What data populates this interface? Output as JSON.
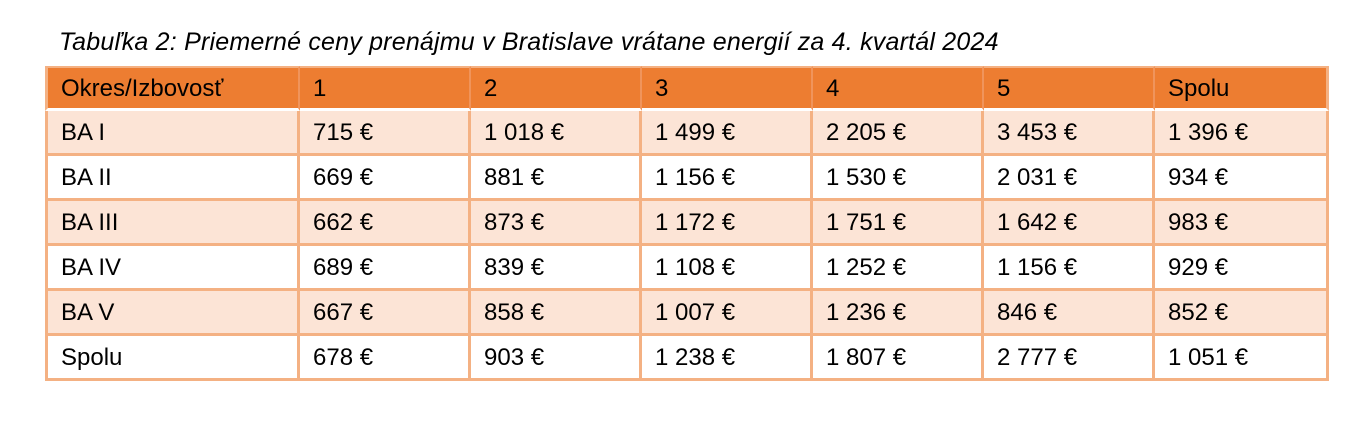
{
  "title": "Tabuľka 2: Priemerné ceny prenájmu v Bratislave vrátane energií za 4. kvartál 2024",
  "table": {
    "columns": [
      "Okres/Izbovosť",
      "1",
      "2",
      "3",
      "4",
      "5",
      "Spolu"
    ],
    "rows": [
      [
        "BA I",
        "715 €",
        "1 018 €",
        "1 499 €",
        "2 205 €",
        "3 453 €",
        "1 396 €"
      ],
      [
        "BA II",
        "669 €",
        "881 €",
        "1 156 €",
        "1 530 €",
        "2 031 €",
        "934 €"
      ],
      [
        "BA III",
        "662 €",
        "873 €",
        "1 172 €",
        "1 751 €",
        "1 642 €",
        "983 €"
      ],
      [
        "BA IV",
        "689 €",
        "839 €",
        "1 108 €",
        "1 252 €",
        "1 156 €",
        "929 €"
      ],
      [
        "BA V",
        "667 €",
        "858 €",
        "1 007 €",
        "1 236 €",
        "846 €",
        "852 €"
      ],
      [
        "Spolu",
        "678 €",
        "903 €",
        "1 238 €",
        "1 807 €",
        "2 777 €",
        "1 051 €"
      ]
    ]
  },
  "chart_data": {
    "type": "table",
    "title": "Priemerné ceny prenájmu v Bratislave vrátane energií za 4. kvartál 2024 (€)",
    "categories": [
      "1",
      "2",
      "3",
      "4",
      "5",
      "Spolu"
    ],
    "series": [
      {
        "name": "BA I",
        "values": [
          715,
          1018,
          1499,
          2205,
          3453,
          1396
        ]
      },
      {
        "name": "BA II",
        "values": [
          669,
          881,
          1156,
          1530,
          2031,
          934
        ]
      },
      {
        "name": "BA III",
        "values": [
          662,
          873,
          1172,
          1751,
          1642,
          983
        ]
      },
      {
        "name": "BA IV",
        "values": [
          689,
          839,
          1108,
          1252,
          1156,
          929
        ]
      },
      {
        "name": "BA V",
        "values": [
          667,
          858,
          1007,
          1236,
          846,
          852
        ]
      },
      {
        "name": "Spolu",
        "values": [
          678,
          903,
          1238,
          1807,
          2777,
          1051
        ]
      }
    ]
  },
  "colors": {
    "header_bg": "#ED7D31",
    "header_divider": "#F0945B",
    "border": "#F4B183",
    "row_alt_bg": "#FCE4D6",
    "row_bg": "#FFFFFF",
    "text": "#000000"
  }
}
